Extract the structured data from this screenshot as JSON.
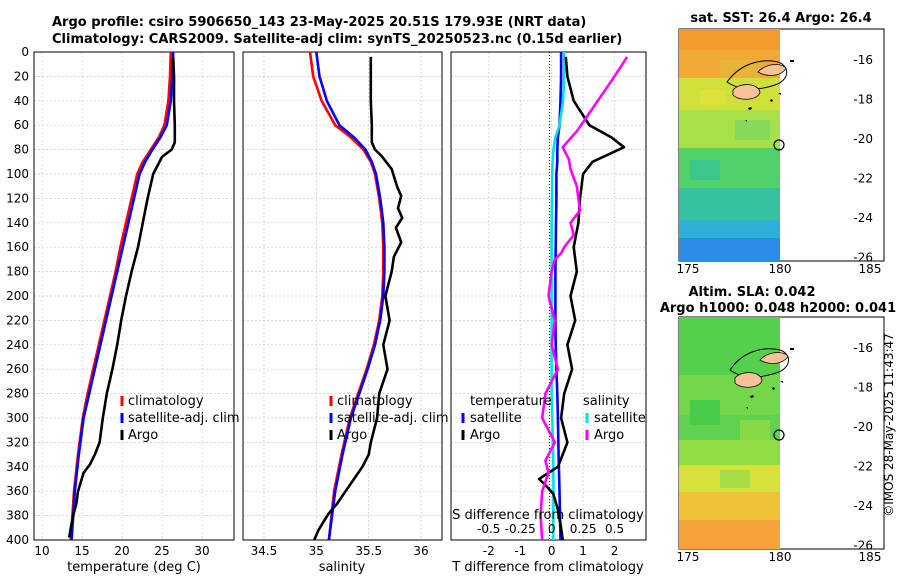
{
  "header": {
    "line1": "Argo profile: csiro 5906650_143 23-May-2025 20.51S 179.93E (NRT data)",
    "line2": "Climatology: CARS2009. Satellite-adj clim: synTS_20250523.nc (0.15d earlier)"
  },
  "colors": {
    "climatology": "#ff0000",
    "satellite": "#0000ff",
    "argo": "#000000",
    "sal_satellite": "#00e0e8",
    "sal_argo": "#ff00ff",
    "land": "#f5c29a"
  },
  "chart_data": [
    {
      "type": "line",
      "panel": "temperature",
      "xlabel": "temperature (deg C)",
      "ylabel": "",
      "xlim": [
        9,
        34
      ],
      "ylim": [
        0,
        400
      ],
      "y_reversed": true,
      "xticks": [
        10,
        15,
        20,
        25,
        30
      ],
      "yticks": [
        0,
        20,
        40,
        60,
        80,
        100,
        120,
        140,
        160,
        180,
        200,
        220,
        240,
        260,
        280,
        300,
        320,
        340,
        360,
        380,
        400
      ],
      "legend": [
        "climatology",
        "satellite-adj. clim",
        "Argo"
      ],
      "series": [
        {
          "name": "climatology",
          "color": "#ff0000",
          "x": [
            26.1,
            26.0,
            25.8,
            25.3,
            24.6,
            23.6,
            22.6,
            21.9,
            21.2,
            20.5,
            19.8,
            19.2,
            18.5,
            17.8,
            17.1,
            16.4,
            15.7,
            15.1,
            14.5,
            14.0,
            13.6
          ],
          "y": [
            0,
            20,
            40,
            60,
            70,
            80,
            90,
            100,
            120,
            140,
            160,
            180,
            200,
            220,
            240,
            260,
            280,
            300,
            330,
            360,
            400
          ]
        },
        {
          "name": "satellite-adj. clim",
          "color": "#0000ff",
          "x": [
            26.4,
            26.3,
            26.1,
            25.6,
            24.8,
            23.8,
            22.9,
            22.2,
            21.5,
            20.8,
            20.1,
            19.4,
            18.7,
            18.0,
            17.3,
            16.6,
            15.9,
            15.2,
            14.6,
            14.1,
            13.7
          ],
          "y": [
            0,
            20,
            40,
            60,
            70,
            80,
            90,
            100,
            120,
            140,
            160,
            180,
            200,
            220,
            240,
            260,
            280,
            300,
            330,
            360,
            400
          ]
        },
        {
          "name": "Argo",
          "color": "#000000",
          "x": [
            26.4,
            26.5,
            26.5,
            26.6,
            26.6,
            26.2,
            25.0,
            23.9,
            23.2,
            22.6,
            22.0,
            21.2,
            20.5,
            19.9,
            19.4,
            18.8,
            18.1,
            17.6,
            17.2,
            16.6,
            16.0,
            15.2,
            14.5,
            14.3,
            13.9,
            13.6,
            13.4
          ],
          "y": [
            4,
            20,
            40,
            60,
            74,
            80,
            86,
            100,
            120,
            140,
            160,
            180,
            200,
            220,
            240,
            260,
            280,
            300,
            320,
            330,
            338,
            345,
            360,
            370,
            380,
            390,
            398
          ]
        }
      ]
    },
    {
      "type": "line",
      "panel": "salinity",
      "xlabel": "salinity",
      "ylabel": "",
      "xlim": [
        34.3,
        36.2
      ],
      "ylim": [
        0,
        400
      ],
      "y_reversed": true,
      "xticks": [
        34.5,
        35,
        35.5,
        36
      ],
      "xticklabels": [
        "34.5",
        "35",
        "35.5",
        "36"
      ],
      "legend": [
        "climatology",
        "satellite-adj. clim",
        "Argo"
      ],
      "series": [
        {
          "name": "climatology",
          "color": "#ff0000",
          "x": [
            34.94,
            34.97,
            35.05,
            35.18,
            35.33,
            35.45,
            35.52,
            35.56,
            35.6,
            35.63,
            35.64,
            35.64,
            35.63,
            35.6,
            35.55,
            35.48,
            35.4,
            35.32,
            35.24,
            35.17,
            35.12
          ],
          "y": [
            0,
            20,
            40,
            60,
            70,
            80,
            90,
            100,
            120,
            140,
            160,
            180,
            200,
            220,
            240,
            260,
            280,
            300,
            330,
            360,
            400
          ]
        },
        {
          "name": "satellite-adj. clim",
          "color": "#0000ff",
          "x": [
            35.0,
            35.03,
            35.1,
            35.22,
            35.36,
            35.47,
            35.53,
            35.57,
            35.61,
            35.64,
            35.65,
            35.65,
            35.64,
            35.61,
            35.56,
            35.49,
            35.41,
            35.33,
            35.25,
            35.18,
            35.12
          ],
          "y": [
            0,
            20,
            40,
            60,
            70,
            80,
            90,
            100,
            120,
            140,
            160,
            180,
            200,
            220,
            240,
            260,
            280,
            300,
            330,
            360,
            400
          ]
        },
        {
          "name": "Argo",
          "color": "#000000",
          "x": [
            35.52,
            35.52,
            35.52,
            35.53,
            35.53,
            35.56,
            35.62,
            35.72,
            35.77,
            35.81,
            35.78,
            35.82,
            35.76,
            35.81,
            35.74,
            35.72,
            35.66,
            35.7,
            35.64,
            35.68,
            35.6,
            35.58,
            35.52,
            35.5,
            35.44,
            35.36,
            35.28,
            35.2,
            35.12,
            35.07,
            35.02,
            35.0,
            34.98
          ],
          "y": [
            4,
            20,
            40,
            60,
            74,
            80,
            85,
            96,
            110,
            118,
            128,
            136,
            144,
            156,
            168,
            180,
            200,
            220,
            240,
            260,
            280,
            300,
            320,
            330,
            340,
            350,
            360,
            370,
            378,
            385,
            392,
            396,
            400
          ]
        }
      ]
    },
    {
      "type": "line",
      "panel": "difference",
      "xlabel": "T difference from climatology",
      "x2label": "S difference from climatology",
      "xlim": [
        -3.2,
        3.0
      ],
      "ylim": [
        0,
        400
      ],
      "y_reversed": true,
      "xticks": [
        -2,
        -1,
        0,
        1,
        2
      ],
      "x2ticks": [
        -0.5,
        -0.25,
        0,
        0.25,
        0.5
      ],
      "x2ticklabels": [
        "-0.5",
        "-0.25",
        "0",
        "0.25",
        "0.5"
      ],
      "legend_temperature": [
        "temperature",
        "satellite",
        "Argo"
      ],
      "legend_salinity": [
        "salinity",
        "satellite",
        "Argo"
      ],
      "series": [
        {
          "name": "temperature satellite",
          "color": "#0000ff",
          "x": [
            0.3,
            0.3,
            0.28,
            0.25,
            0.2,
            0.18,
            0.18,
            0.15,
            0.15,
            0.14,
            0.13,
            0.12,
            0.12,
            0.12,
            0.13,
            0.15,
            0.18,
            0.2,
            0.22,
            0.25,
            0.28
          ],
          "y": [
            0,
            20,
            40,
            60,
            70,
            80,
            90,
            100,
            120,
            140,
            160,
            180,
            200,
            220,
            240,
            260,
            280,
            300,
            330,
            360,
            400
          ]
        },
        {
          "name": "salinity satellite",
          "color": "#00e0e8",
          "x": [
            0.4,
            0.4,
            0.36,
            0.25,
            0.12,
            0.06,
            0.03,
            0.02,
            0.01,
            0.0,
            0.0,
            0.0,
            0.0,
            0.0,
            0.0,
            0.0,
            0.0,
            0.02,
            0.05,
            0.06,
            0.05
          ],
          "y": [
            0,
            20,
            40,
            60,
            70,
            80,
            90,
            100,
            120,
            140,
            160,
            180,
            200,
            220,
            240,
            260,
            280,
            300,
            330,
            360,
            400
          ]
        },
        {
          "name": "temperature Argo",
          "color": "#000000",
          "x": [
            0.45,
            0.5,
            0.7,
            1.2,
            1.9,
            2.3,
            1.8,
            1.3,
            1.0,
            0.9,
            0.85,
            0.7,
            0.8,
            0.6,
            0.75,
            0.5,
            0.65,
            0.4,
            0.3,
            0.5,
            0.35,
            0.2,
            -0.1,
            -0.4,
            -0.2,
            0.05,
            0.2,
            0.3,
            0.35
          ],
          "y": [
            4,
            20,
            40,
            60,
            70,
            78,
            84,
            90,
            100,
            120,
            140,
            160,
            180,
            200,
            220,
            240,
            260,
            280,
            300,
            320,
            330,
            340,
            345,
            350,
            355,
            362,
            375,
            390,
            400
          ]
        },
        {
          "name": "salinity Argo",
          "color": "#ff00ff",
          "x": [
            2.4,
            2.0,
            1.6,
            1.2,
            0.8,
            0.35,
            0.55,
            0.6,
            0.8,
            0.9,
            0.6,
            0.7,
            0.4,
            0.3,
            0.1,
            0.0,
            -0.1,
            0.1,
            0.0,
            0.2,
            -0.2,
            -0.3,
            0.1,
            -0.2,
            -0.1,
            -0.3,
            -0.35,
            -0.3
          ],
          "y": [
            4,
            20,
            35,
            50,
            65,
            78,
            88,
            96,
            110,
            130,
            140,
            150,
            160,
            165,
            170,
            180,
            200,
            220,
            240,
            260,
            280,
            300,
            320,
            335,
            345,
            360,
            380,
            400
          ]
        }
      ]
    }
  ],
  "maps": {
    "sst": {
      "title": "sat. SST: 26.4 Argo: 26.4",
      "xticks": [
        "175",
        "180",
        "185"
      ],
      "yticks": [
        "-16",
        "-18",
        "-20",
        "-22",
        "-24",
        "-26"
      ]
    },
    "sla": {
      "title1": "Altim. SLA: 0.042",
      "title2": "Argo h1000: 0.048 h2000: 0.041",
      "xticks": [
        "175",
        "180",
        "185"
      ],
      "yticks": [
        "-16",
        "-18",
        "-20",
        "-22",
        "-24",
        "-26"
      ]
    },
    "argo_position": {
      "lon": 179.93,
      "lat": -20.51
    }
  },
  "stamp": "©IMOS 28-May-2025 11:43:47"
}
